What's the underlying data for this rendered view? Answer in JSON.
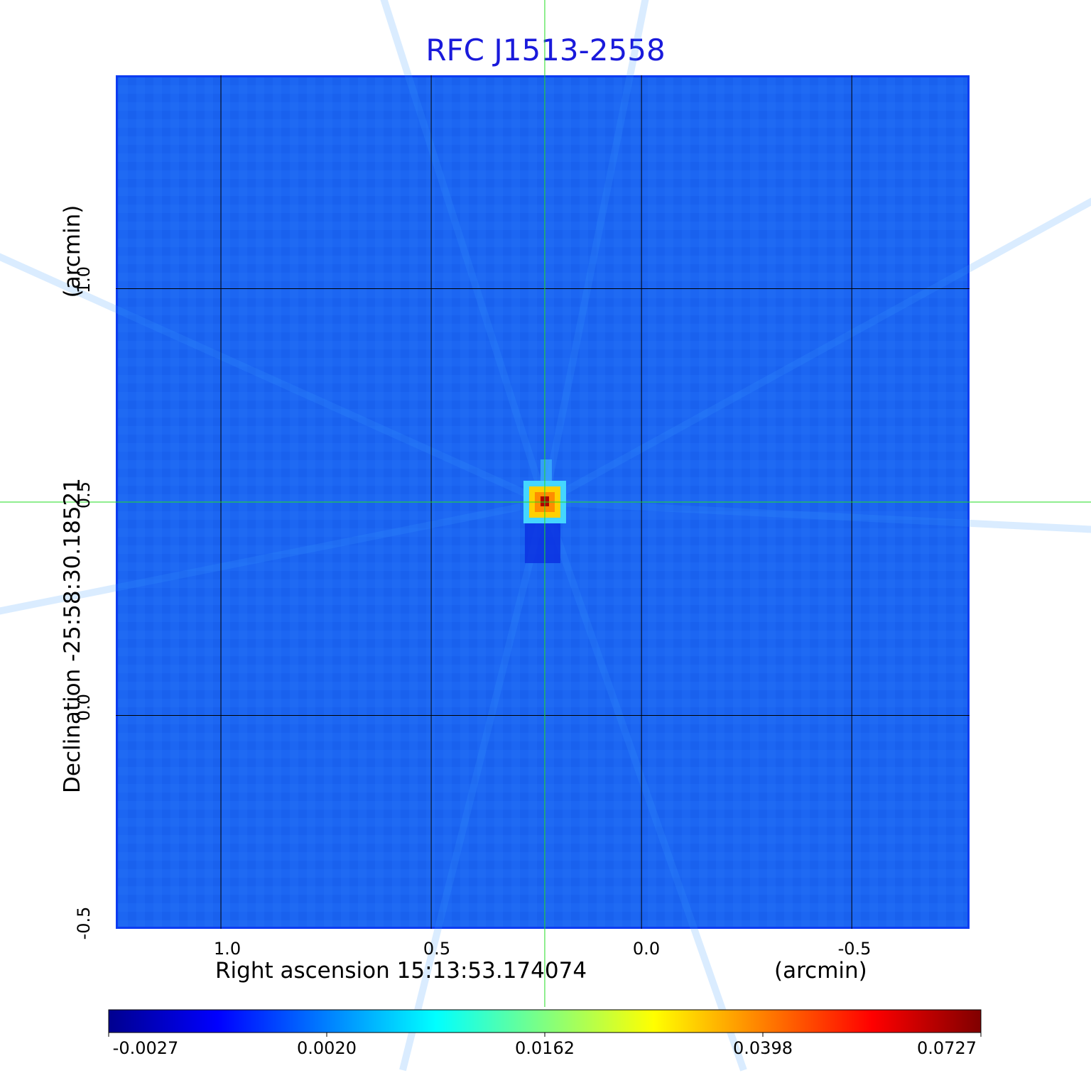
{
  "chart_data": {
    "type": "heatmap",
    "title": "RFC J1513-2558",
    "xlabel": "Right ascension  15:13:53.174074",
    "xunit": "(arcmin)",
    "ylabel": "Declination  -25:58:30.18521",
    "yunit": "(arcmin)",
    "x_ticks": [
      "1.0",
      "0.5",
      "0.0",
      "-0.5"
    ],
    "y_ticks": [
      "1.0",
      "0.5",
      "0.0",
      "-0.5"
    ],
    "xlim": [
      1.25,
      -0.78
    ],
    "ylim": [
      -0.5,
      1.5
    ],
    "grid": true,
    "crosshair": {
      "ra_offset": 0.23,
      "dec_offset": 0.5
    },
    "source_peak": {
      "ra_offset": 0.23,
      "dec_offset": 0.5,
      "value": 0.0727
    },
    "colorbar": {
      "colormap": "jet",
      "ticks": [
        "-0.0027",
        "0.0020",
        "0.0162",
        "0.0398",
        "0.0727"
      ],
      "min": -0.0027,
      "max": 0.0727
    },
    "colors": {
      "crosshair": "#22dd22",
      "grid": "#000000",
      "title": "#1a1adb"
    }
  }
}
